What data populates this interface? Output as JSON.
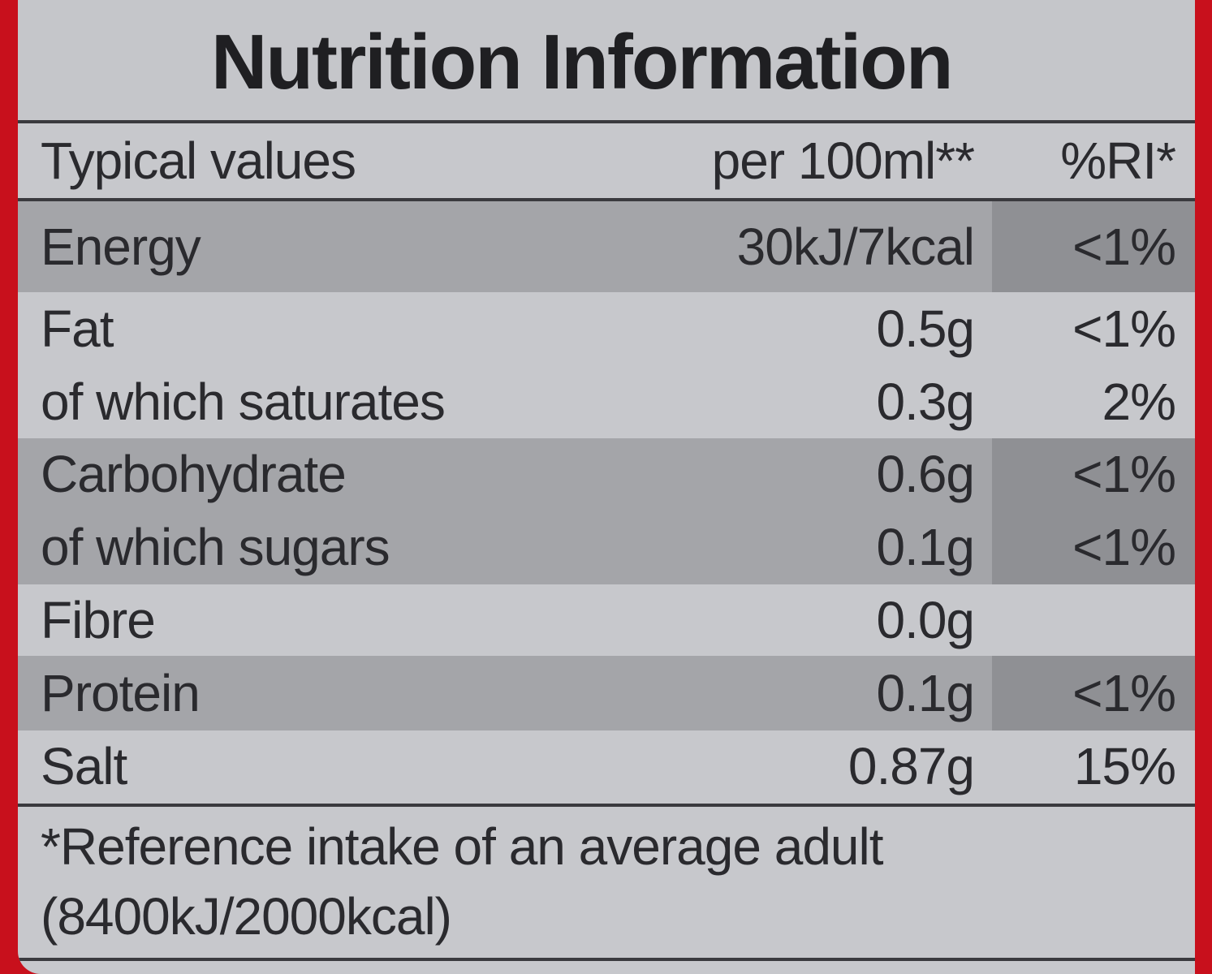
{
  "title": "Nutrition Information",
  "header": {
    "typical_values": "Typical values",
    "per_100ml": "per 100ml**",
    "ri": "%RI*"
  },
  "rows": [
    {
      "label": "Energy",
      "value": "30kJ/7kcal",
      "ri": "<1%"
    },
    {
      "label": "Fat",
      "value": "0.5g",
      "ri": "<1%"
    },
    {
      "label": "of which saturates",
      "value": "0.3g",
      "ri": "2%"
    },
    {
      "label": "Carbohydrate",
      "value": "0.6g",
      "ri": "<1%"
    },
    {
      "label": "of which sugars",
      "value": "0.1g",
      "ri": "<1%"
    },
    {
      "label": "Fibre",
      "value": "0.0g",
      "ri": ""
    },
    {
      "label": "Protein",
      "value": "0.1g",
      "ri": "<1%"
    },
    {
      "label": "Salt",
      "value": "0.87g",
      "ri": "15%"
    }
  ],
  "footnote": {
    "line1": "*Reference intake of an average adult",
    "line2": "(8400kJ/2000kcal)"
  },
  "colors": {
    "background_red": "#c8101c",
    "panel_grey": "#c7c8cc",
    "shade_grey": "#a4a5a9",
    "shade_dark_grey": "#8f9094"
  }
}
